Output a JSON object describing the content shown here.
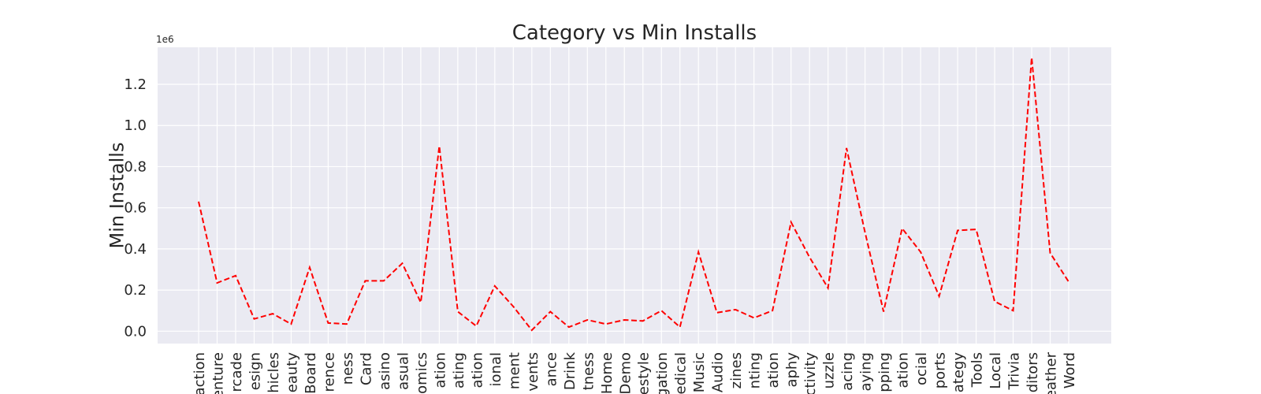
{
  "chart_data": {
    "type": "line",
    "title": "Category vs Min Installs",
    "xlabel": "",
    "ylabel": "Min Installs",
    "y_offset_label": "1e6",
    "ylim": [
      -0.06,
      1.38
    ],
    "yticks": [
      0.0,
      0.2,
      0.4,
      0.6,
      0.8,
      1.0,
      1.2
    ],
    "ytick_labels": [
      "0.0",
      "0.2",
      "0.4",
      "0.6",
      "0.8",
      "1.0",
      "1.2"
    ],
    "grid": true,
    "line_color": "#ff0000",
    "line_style": "dashed",
    "background": "#eaeaf2",
    "categories": [
      "action",
      "enture",
      "rcade",
      "esign",
      "hicles",
      "eauty",
      "Board",
      "rence",
      "ness",
      "Card",
      "asino",
      "asual",
      "omics",
      "ation",
      "ating",
      "ation",
      "ional",
      "ment",
      "vents",
      "ance",
      "Drink",
      "tness",
      "Home",
      "Demo",
      "estyle",
      "gation",
      "edical",
      "Music",
      "Audio",
      "zines",
      "nting",
      "ation",
      "aphy",
      "ctivity",
      "uzzle",
      "acing",
      "aying",
      "pping",
      "ation",
      "ocial",
      "ports",
      "ategy",
      "Tools",
      "Local",
      "Trivia",
      "ditors",
      "eather",
      "Word"
    ],
    "series": [
      {
        "values": [
          0.63,
          0.235,
          0.27,
          0.06,
          0.085,
          0.035,
          0.31,
          0.04,
          0.035,
          0.245,
          0.245,
          0.33,
          0.14,
          0.9,
          0.095,
          0.025,
          0.22,
          0.12,
          0.005,
          0.095,
          0.02,
          0.055,
          0.035,
          0.055,
          0.05,
          0.1,
          0.02,
          0.385,
          0.09,
          0.105,
          0.065,
          0.1,
          0.53,
          0.36,
          0.21,
          0.89,
          0.48,
          0.095,
          0.5,
          0.385,
          0.17,
          0.49,
          0.495,
          0.145,
          0.1,
          1.33,
          0.38,
          0.24
        ]
      }
    ]
  }
}
